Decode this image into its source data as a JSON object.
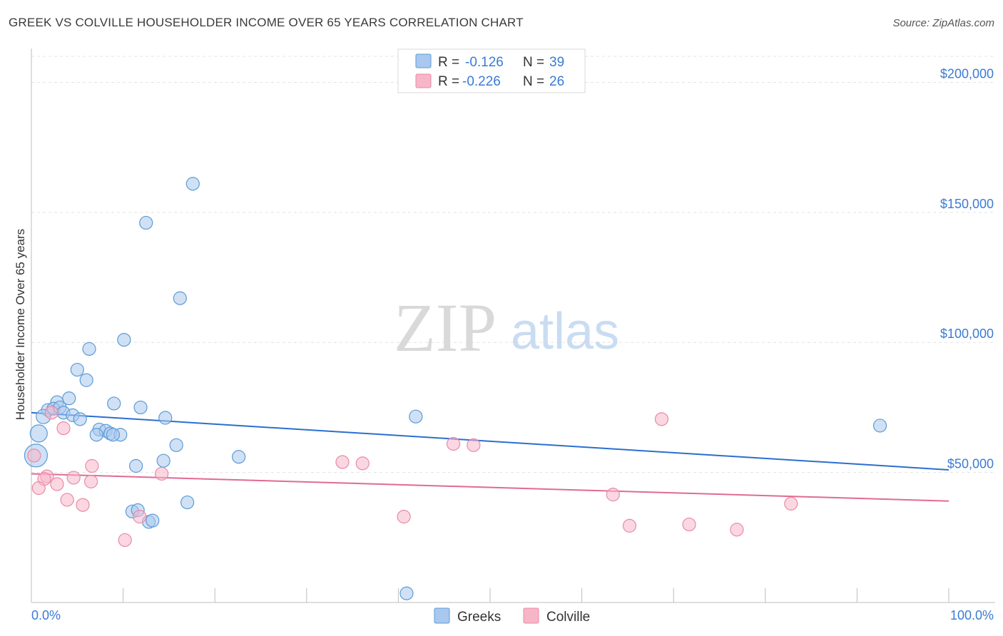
{
  "header": {
    "title": "GREEK VS COLVILLE HOUSEHOLDER INCOME OVER 65 YEARS CORRELATION CHART",
    "source": "Source: ZipAtlas.com"
  },
  "watermark": {
    "zip": "ZIP",
    "atlas": "atlas"
  },
  "legend": {
    "rows": [
      {
        "r_label": "R =",
        "r_value": "-0.126",
        "n_label": "N =",
        "n_value": "39",
        "color": "#a9c8ef"
      },
      {
        "r_label": "R =",
        "r_value": "-0.226",
        "n_label": "N =",
        "n_value": "26",
        "color": "#f7b6c8"
      }
    ]
  },
  "bottom_legend": {
    "greeks": "Greeks",
    "colville": "Colville"
  },
  "chart_data": {
    "type": "scatter",
    "ylabel": "Householder Income Over 65 years",
    "xlim": [
      0,
      100
    ],
    "ylim": [
      0,
      210000
    ],
    "x_tick_labels": {
      "min": "0.0%",
      "max": "100.0%"
    },
    "y_ticks": [
      {
        "value": 50000,
        "label": "$50,000"
      },
      {
        "value": 100000,
        "label": "$100,000"
      },
      {
        "value": 150000,
        "label": "$150,000"
      },
      {
        "value": 200000,
        "label": "$200,000"
      }
    ],
    "grid": true,
    "series": [
      {
        "name": "Greeks",
        "color": "#5b9bd5",
        "fill": "#a9c8ef",
        "trend": {
          "x0": 0,
          "y0": 73000,
          "x1": 100,
          "y1": 51000,
          "color": "#2a6fcf"
        },
        "points": [
          [
            17.6,
            161000
          ],
          [
            12.5,
            146000
          ],
          [
            16.2,
            117000
          ],
          [
            10.1,
            101000
          ],
          [
            6.3,
            97500
          ],
          [
            5,
            89500
          ],
          [
            6,
            85500
          ],
          [
            4.1,
            78500
          ],
          [
            2.8,
            77000
          ],
          [
            9,
            76500
          ],
          [
            1.8,
            74000
          ],
          [
            2.4,
            74500
          ],
          [
            3.1,
            75000
          ],
          [
            11.9,
            75000
          ],
          [
            3.5,
            73000
          ],
          [
            4.5,
            72000
          ],
          [
            1.3,
            71500
          ],
          [
            14.6,
            71000
          ],
          [
            5.3,
            70500
          ],
          [
            41.9,
            71500
          ],
          [
            92.5,
            68000
          ],
          [
            7.4,
            66500
          ],
          [
            8.1,
            66000
          ],
          [
            8.6,
            65000
          ],
          [
            9.7,
            64500
          ],
          [
            7.1,
            64500
          ],
          [
            0.8,
            65000
          ],
          [
            15.8,
            60500
          ],
          [
            22.6,
            56000
          ],
          [
            14.4,
            54500
          ],
          [
            11.4,
            52500
          ],
          [
            0.5,
            56500
          ],
          [
            17,
            38500
          ],
          [
            11,
            35000
          ],
          [
            11.6,
            35500
          ],
          [
            12.8,
            31000
          ],
          [
            13.2,
            31500
          ],
          [
            40.9,
            3500
          ],
          [
            8.9,
            64500
          ]
        ],
        "sizes": [
          9,
          9,
          9,
          9,
          9,
          9,
          9,
          9,
          9,
          9,
          9,
          9,
          9,
          9,
          9,
          9,
          10,
          9,
          9,
          9,
          9,
          9,
          9,
          9,
          9,
          9,
          12,
          9,
          9,
          9,
          9,
          16,
          9,
          9,
          9,
          9,
          9,
          9,
          9
        ]
      },
      {
        "name": "Colville",
        "color": "#e88aa8",
        "fill": "#f7b6c8",
        "trend": {
          "x0": 0,
          "y0": 49500,
          "x1": 100,
          "y1": 39000,
          "color": "#e06a94"
        },
        "points": [
          [
            2.2,
            73000
          ],
          [
            3.5,
            67000
          ],
          [
            68.7,
            70500
          ],
          [
            46,
            61000
          ],
          [
            48.2,
            60500
          ],
          [
            0.3,
            56500
          ],
          [
            6.6,
            52500
          ],
          [
            33.9,
            54000
          ],
          [
            36.1,
            53500
          ],
          [
            14.2,
            49500
          ],
          [
            1.7,
            48500
          ],
          [
            1.4,
            47500
          ],
          [
            4.6,
            48000
          ],
          [
            6.5,
            46500
          ],
          [
            2.8,
            45500
          ],
          [
            0.8,
            44000
          ],
          [
            63.4,
            41500
          ],
          [
            3.9,
            39500
          ],
          [
            5.6,
            37500
          ],
          [
            82.8,
            38000
          ],
          [
            40.6,
            33000
          ],
          [
            11.8,
            33000
          ],
          [
            65.2,
            29500
          ],
          [
            71.7,
            30000
          ],
          [
            76.9,
            28000
          ],
          [
            10.2,
            24000
          ]
        ],
        "sizes": [
          9,
          9,
          9,
          9,
          9,
          9,
          9,
          9,
          9,
          9,
          9,
          9,
          9,
          9,
          9,
          9,
          9,
          9,
          9,
          9,
          9,
          9,
          9,
          9,
          9,
          9
        ]
      }
    ]
  }
}
